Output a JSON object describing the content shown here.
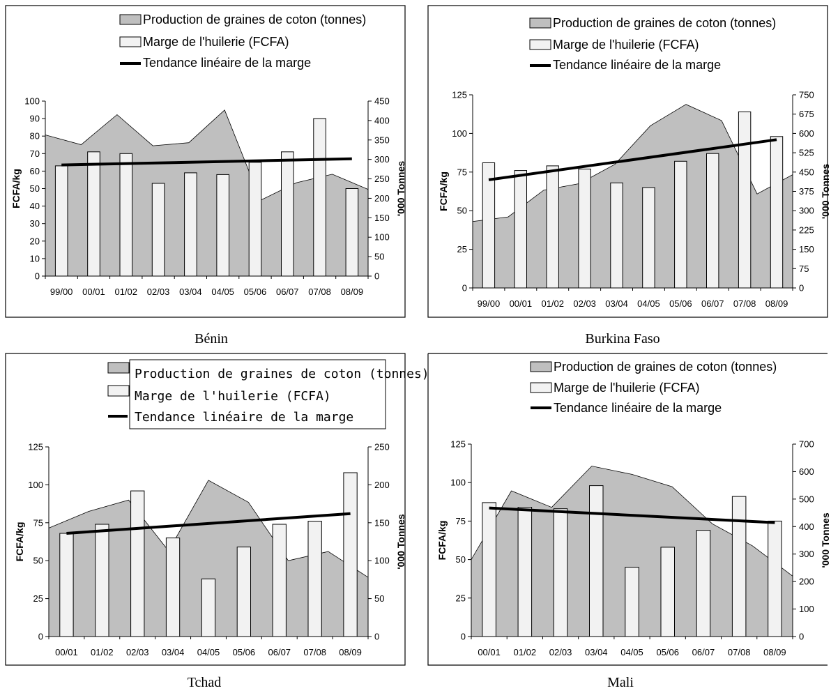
{
  "legend": {
    "production": "Production de graines de coton (tonnes)",
    "marge": "Marge de l'huilerie (FCFA)",
    "tendance": "Tendance linéaire de la marge"
  },
  "colors": {
    "area_fill": "#bfbfbf",
    "bar_fill": "#f2f2f2",
    "trend": "#000000"
  },
  "chart_data": [
    {
      "type": "bar",
      "caption": "Bénin",
      "ylabel": "FCFA/kg",
      "y2label": "'000 Tonnes",
      "categories": [
        "99/00",
        "00/01",
        "01/02",
        "02/03",
        "03/04",
        "04/05",
        "05/06",
        "06/07",
        "07/08",
        "08/09"
      ],
      "ylim": [
        0,
        100
      ],
      "yticks": [
        0,
        10,
        20,
        30,
        40,
        50,
        60,
        70,
        80,
        90,
        100
      ],
      "y2lim": [
        0,
        450
      ],
      "y2ticks": [
        0,
        50,
        100,
        150,
        200,
        250,
        300,
        350,
        400,
        450
      ],
      "series": [
        {
          "name": "Production de graines de coton (tonnes)",
          "kind": "area",
          "axis": "right",
          "values": [
            363,
            338,
            415,
            335,
            343,
            427,
            195,
            240,
            262,
            223
          ]
        },
        {
          "name": "Marge de l'huilerie (FCFA)",
          "kind": "bar",
          "axis": "left",
          "values": [
            63,
            71,
            70,
            53,
            59,
            58,
            65,
            71,
            90,
            50
          ]
        },
        {
          "name": "Tendance linéaire de la marge",
          "kind": "line",
          "axis": "left",
          "values": [
            63.5,
            63.9,
            64.3,
            64.7,
            65.1,
            65.5,
            65.9,
            66.3,
            66.7,
            67.0
          ]
        }
      ]
    },
    {
      "type": "bar",
      "caption": "Burkina Faso",
      "ylabel": "FCFA/kg",
      "y2label": "'000 Tonnes",
      "categories": [
        "99/00",
        "00/01",
        "01/02",
        "02/03",
        "03/04",
        "04/05",
        "05/06",
        "06/07",
        "07/08",
        "08/09"
      ],
      "ylim": [
        0,
        125
      ],
      "yticks": [
        0,
        25,
        50,
        75,
        100,
        125
      ],
      "y2lim": [
        0,
        750
      ],
      "y2ticks": [
        0,
        75,
        150,
        225,
        300,
        375,
        450,
        525,
        600,
        675,
        750
      ],
      "series": [
        {
          "name": "Production de graines de coton (tonnes)",
          "kind": "area",
          "axis": "right",
          "values": [
            258,
            276,
            380,
            405,
            480,
            630,
            713,
            650,
            365,
            440
          ]
        },
        {
          "name": "Marge de l'huilerie (FCFA)",
          "kind": "bar",
          "axis": "left",
          "values": [
            81,
            76,
            79,
            77,
            68,
            65,
            82,
            87,
            114,
            98
          ]
        },
        {
          "name": "Tendance linéaire de la marge",
          "kind": "line",
          "axis": "left",
          "values": [
            70,
            73,
            76,
            79,
            82,
            85,
            88,
            91,
            94,
            96
          ]
        }
      ]
    },
    {
      "type": "bar",
      "caption": "Tchad",
      "ylabel": "FCFA/kg",
      "y2label": "'000 Tonnes",
      "categories": [
        "00/01",
        "01/02",
        "02/03",
        "03/04",
        "04/05",
        "05/06",
        "06/07",
        "07/08",
        "08/09"
      ],
      "ylim": [
        0,
        125
      ],
      "yticks": [
        0,
        25,
        50,
        75,
        100,
        125
      ],
      "y2lim": [
        0,
        250
      ],
      "y2ticks": [
        0,
        50,
        100,
        150,
        200,
        250
      ],
      "series": [
        {
          "name": "Production de graines de coton (tonnes)",
          "kind": "area",
          "axis": "right",
          "values": [
            143,
            165,
            180,
            113,
            206,
            177,
            100,
            112,
            78
          ]
        },
        {
          "name": "Marge de l'huilerie (FCFA)",
          "kind": "bar",
          "axis": "left",
          "values": [
            68,
            74,
            96,
            65,
            38,
            59,
            74,
            76,
            108
          ]
        },
        {
          "name": "Tendance linéaire de la marge",
          "kind": "line",
          "axis": "left",
          "values": [
            68,
            69.6,
            71.2,
            72.8,
            74.4,
            76,
            77.6,
            79.2,
            81
          ]
        }
      ]
    },
    {
      "type": "bar",
      "caption": "Mali",
      "ylabel": "FCFA/kg",
      "y2label": "'000 Tonnes",
      "categories": [
        "00/01",
        "01/02",
        "02/03",
        "03/04",
        "04/05",
        "05/06",
        "06/07",
        "07/08",
        "08/09"
      ],
      "ylim": [
        0,
        125
      ],
      "yticks": [
        0,
        25,
        50,
        75,
        100,
        125
      ],
      "y2lim": [
        0,
        700
      ],
      "y2ticks": [
        0,
        100,
        200,
        300,
        400,
        500,
        600,
        700
      ],
      "series": [
        {
          "name": "Production de graines de coton (tonnes)",
          "kind": "area",
          "axis": "right",
          "values": [
            280,
            530,
            470,
            620,
            590,
            545,
            410,
            330,
            220
          ]
        },
        {
          "name": "Marge de l'huilerie (FCFA)",
          "kind": "bar",
          "axis": "left",
          "values": [
            87,
            84,
            83,
            98,
            45,
            58,
            69,
            91,
            75
          ]
        },
        {
          "name": "Tendance linéaire de la marge",
          "kind": "line",
          "axis": "left",
          "values": [
            83.5,
            82.3,
            81.1,
            79.9,
            78.7,
            77.5,
            76.3,
            75.1,
            74
          ]
        }
      ]
    }
  ]
}
